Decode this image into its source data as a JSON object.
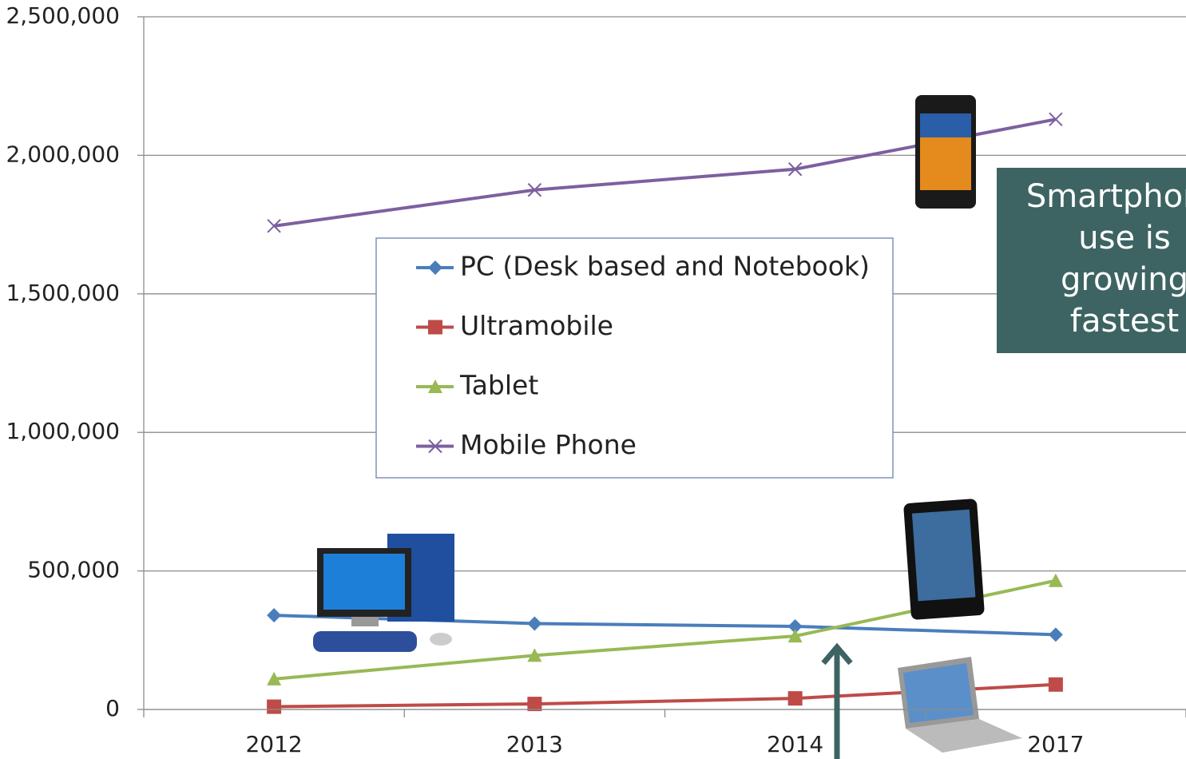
{
  "chart_data": {
    "type": "line",
    "categories": [
      "2012",
      "2013",
      "2014",
      "2017"
    ],
    "series": [
      {
        "name": "PC (Desk based and Notebook)",
        "color": "#4a7ebb",
        "marker": "diamond",
        "values": [
          340000,
          310000,
          300000,
          270000
        ]
      },
      {
        "name": "Ultramobile",
        "color": "#be4b48",
        "marker": "square",
        "values": [
          10000,
          20000,
          40000,
          90000
        ]
      },
      {
        "name": "Tablet",
        "color": "#98b954",
        "marker": "triangle",
        "values": [
          110000,
          195000,
          265000,
          465000
        ]
      },
      {
        "name": "Mobile Phone",
        "color": "#7d60a0",
        "marker": "x",
        "values": [
          1745000,
          1875000,
          1950000,
          2130000
        ]
      }
    ],
    "ylim": [
      0,
      2500000
    ],
    "yticks": [
      0,
      {
        "value": 500000,
        "label": "500,000"
      },
      {
        "value": 1000000,
        "label": "1,000,000"
      },
      {
        "value": 1500000,
        "label": "1,500,000"
      },
      {
        "value": 2000000,
        "label": "2,000,000"
      },
      {
        "value": 2500000,
        "label": "2,500,000"
      }
    ],
    "grid": true,
    "annotation": "Smartphone use is growing fastest"
  }
}
